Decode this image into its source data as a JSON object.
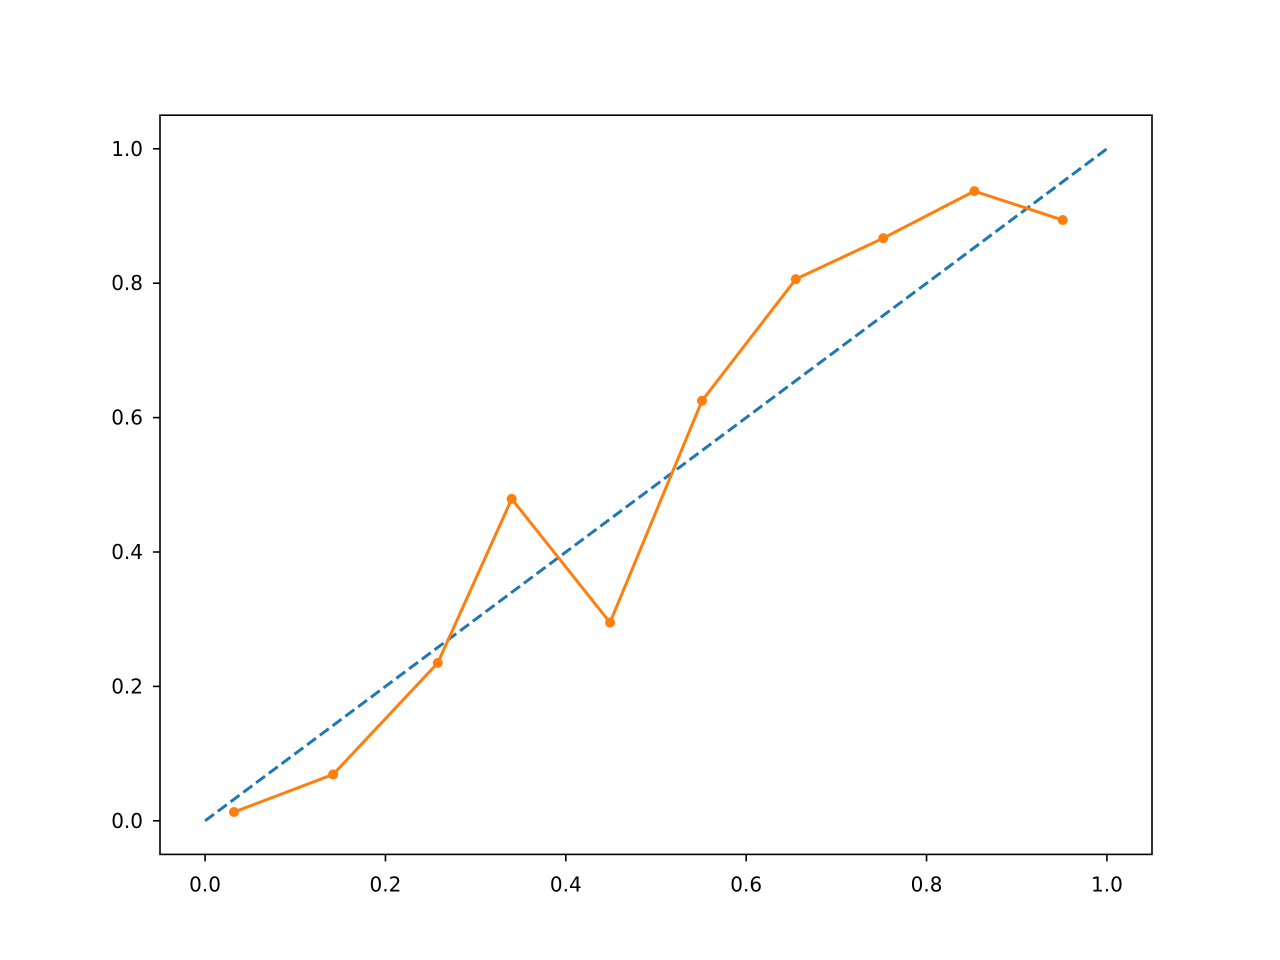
{
  "chart_data": {
    "type": "line",
    "title": "",
    "xlabel": "",
    "ylabel": "",
    "xlim": [
      -0.05,
      1.05
    ],
    "ylim": [
      -0.05,
      1.05
    ],
    "xticks": [
      0.0,
      0.2,
      0.4,
      0.6,
      0.8,
      1.0
    ],
    "yticks": [
      0.0,
      0.2,
      0.4,
      0.6,
      0.8,
      1.0
    ],
    "xtick_labels": [
      "0.0",
      "0.2",
      "0.4",
      "0.6",
      "0.8",
      "1.0"
    ],
    "ytick_labels": [
      "0.0",
      "0.2",
      "0.4",
      "0.6",
      "0.8",
      "1.0"
    ],
    "grid": false,
    "legend": "none",
    "series": [
      {
        "style": "dashed",
        "color": "#1f77b4",
        "x": [
          0.0,
          1.0
        ],
        "y": [
          0.0,
          1.0
        ]
      },
      {
        "style": "solid-with-markers",
        "color": "#ff7f0e",
        "x": [
          0.032,
          0.142,
          0.258,
          0.34,
          0.449,
          0.551,
          0.655,
          0.752,
          0.853,
          0.951
        ],
        "y": [
          0.013,
          0.069,
          0.235,
          0.479,
          0.295,
          0.625,
          0.806,
          0.867,
          0.937,
          0.894
        ]
      }
    ]
  }
}
